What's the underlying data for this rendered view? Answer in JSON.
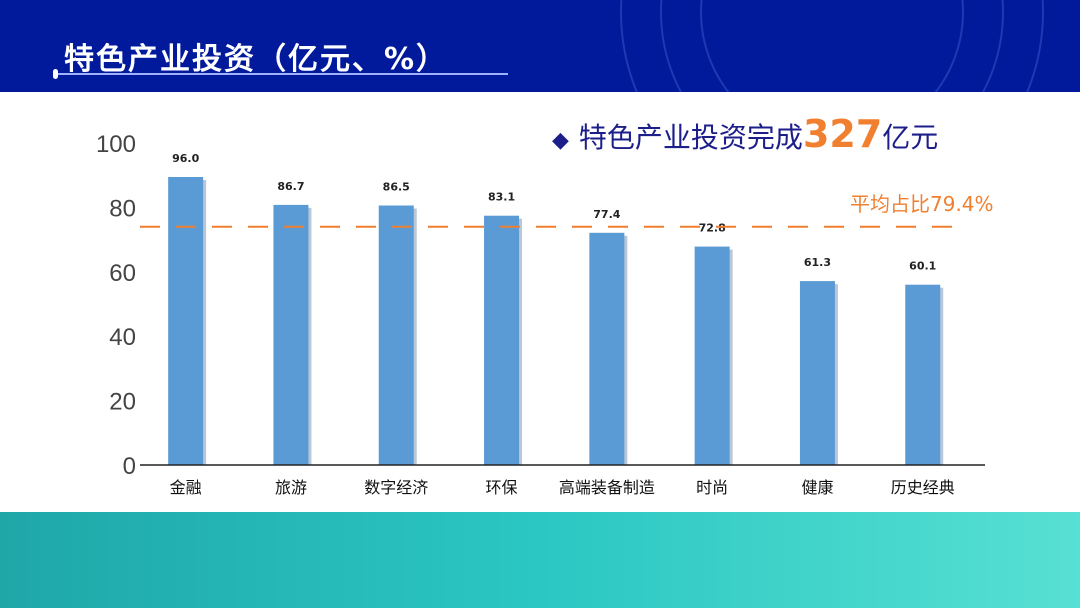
{
  "title": "特色产业投资（亿元、%）",
  "headline": {
    "prefix": "特色产业投资完成",
    "value": "327",
    "suffix": "亿元"
  },
  "colors": {
    "bar": "#5b9bd5",
    "accent": "#f08030",
    "header": "#001a9b",
    "headline": "#1c1f8a"
  },
  "chart_data": {
    "type": "bar",
    "title": "特色产业投资（亿元、%）",
    "categories": [
      "金融",
      "旅游",
      "数字经济",
      "环保",
      "高端装备制造",
      "时尚",
      "健康",
      "历史经典"
    ],
    "values": [
      96.0,
      86.7,
      86.5,
      83.1,
      77.4,
      72.8,
      61.3,
      60.1
    ],
    "data_labels": [
      "96.0",
      "86.7",
      "86.5",
      "83.1",
      "77.4",
      "72.8",
      "61.3",
      "60.1"
    ],
    "yticks": [
      "0",
      "20",
      "40",
      "60",
      "80",
      "100"
    ],
    "ylim": [
      0,
      100
    ],
    "reference_line": {
      "value": 79.4,
      "label": "平均占比79.4%"
    },
    "xlabel": "",
    "ylabel": "",
    "grid": false
  }
}
